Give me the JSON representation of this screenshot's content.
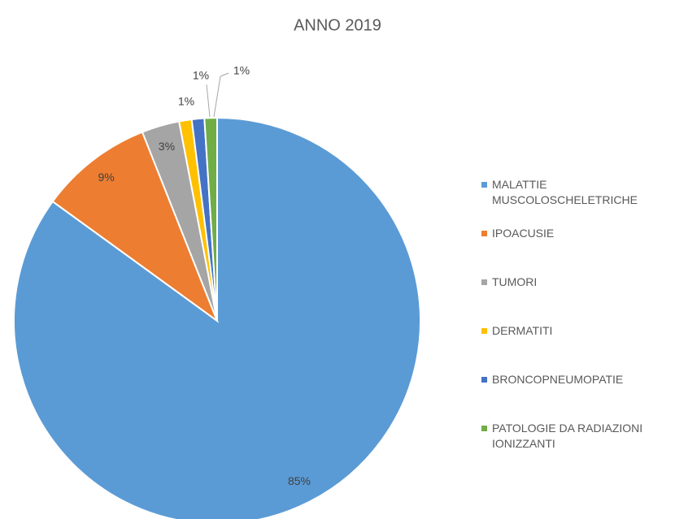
{
  "chart_data": {
    "type": "pie",
    "title": "ANNO 2019",
    "categories": [
      "MALATTIE MUSCOLOSCHELETRICHE",
      "IPOACUSIE",
      "TUMORI",
      "DERMATITI",
      "BRONCOPNEUMOPATIE",
      "PATOLOGIE DA RADIAZIONI IONIZZANTI"
    ],
    "values": [
      85,
      9,
      3,
      1,
      1,
      1
    ],
    "value_labels": [
      "85%",
      "9%",
      "3%",
      "1%",
      "1%",
      "1%"
    ],
    "colors": [
      "#5b9bd5",
      "#ed7d31",
      "#a5a5a5",
      "#ffc000",
      "#4472c4",
      "#70ad47"
    ],
    "legend": "right"
  }
}
